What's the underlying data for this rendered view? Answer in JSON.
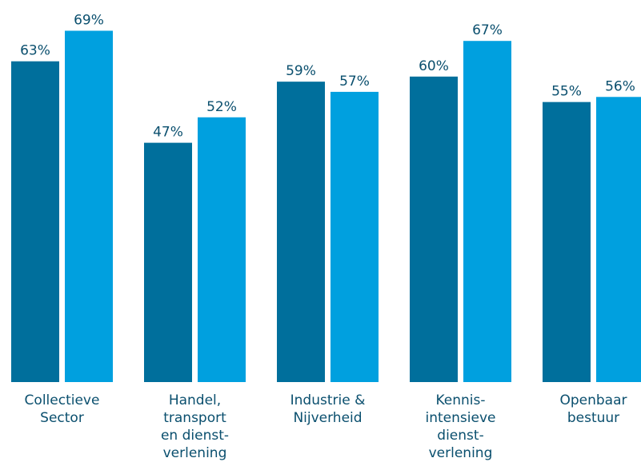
{
  "chart_data": {
    "type": "bar",
    "categories": [
      [
        "Collectieve",
        "Sector"
      ],
      [
        "Handel,",
        "transport",
        "en dienst-",
        "verlening"
      ],
      [
        "Industrie &",
        "Nijverheid"
      ],
      [
        "Kennis-",
        "intensieve",
        "dienst-",
        "verlening"
      ],
      [
        "Openbaar",
        "bestuur"
      ]
    ],
    "series": [
      {
        "values": [
          63,
          47,
          59,
          60,
          55
        ],
        "color": "#006f9c"
      },
      {
        "values": [
          69,
          52,
          57,
          67,
          56
        ],
        "color": "#00a0df"
      }
    ],
    "value_suffix": "%",
    "ylim": [
      0,
      100
    ],
    "grid": false,
    "legend": "none"
  }
}
